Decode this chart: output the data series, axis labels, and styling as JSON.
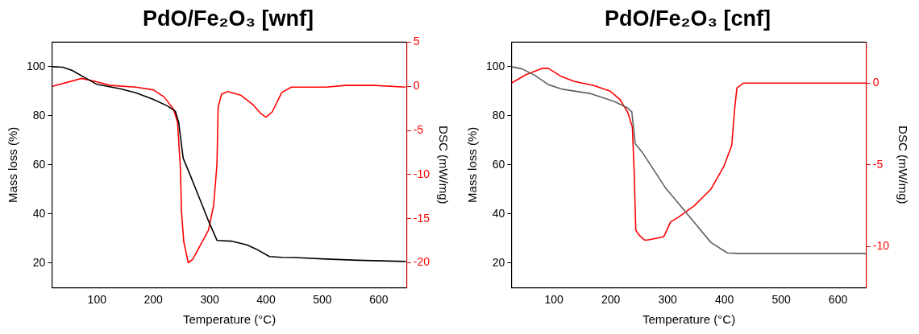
{
  "chart_data": [
    {
      "type": "line",
      "title": "PdO/Fe₂O₃ [wnf]",
      "xlabel": "Temperature (°C)",
      "ylabel": "Mass loss (%)",
      "y2label": "DSC (mW/mg)",
      "xlim": [
        20,
        650
      ],
      "xticks": [
        100,
        200,
        300,
        400,
        500,
        600
      ],
      "ylim": [
        10,
        110
      ],
      "yticks": [
        20,
        40,
        60,
        80,
        100
      ],
      "y2lim": [
        -22.8,
        5
      ],
      "y2ticks": [
        -20,
        -15,
        -10,
        -5,
        0,
        5
      ],
      "series": [
        {
          "color": "#000000",
          "x": [
            21,
            39,
            56,
            79,
            100,
            141,
            169,
            200,
            225,
            239,
            245,
            253,
            264,
            281,
            298,
            313,
            338,
            366,
            383,
            406,
            428,
            451,
            507,
            563,
            648
          ],
          "values": [
            100,
            99.8,
            98.5,
            95.5,
            92.8,
            91,
            89.4,
            86.7,
            84,
            81.9,
            77.3,
            62.7,
            56.6,
            46.9,
            37.1,
            29.2,
            28.9,
            27.4,
            25.6,
            22.6,
            22.3,
            22.2,
            21.6,
            21.1,
            20.6
          ]
        },
        {
          "color": "#ff0000",
          "axis": "y2",
          "x": [
            21,
            73,
            100,
            124,
            169,
            200,
            219,
            236,
            243,
            248,
            250,
            254,
            262,
            270,
            281,
            298,
            307,
            313,
            315,
            321,
            332,
            355,
            377,
            391,
            400,
            411,
            428,
            445,
            479,
            507,
            541,
            592,
            648
          ],
          "values": [
            0,
            0.9,
            0.5,
            0.1,
            -0.1,
            -0.4,
            -1.2,
            -2.6,
            -4.1,
            -9.2,
            -14.2,
            -17.6,
            -20,
            -19.6,
            -18.3,
            -16.3,
            -13.5,
            -8.8,
            -2.4,
            -0.9,
            -0.6,
            -1.0,
            -2.1,
            -3.1,
            -3.5,
            -2.9,
            -0.7,
            -0.1,
            -0.1,
            -0.1,
            0.1,
            0.1,
            -0.1
          ]
        }
      ]
    },
    {
      "type": "line",
      "title": "PdO/Fe₂O₃ [cnf]",
      "xlabel": "Temperature (°C)",
      "ylabel": "Mass loss (%)",
      "y2label": "DSC (mW/mg)",
      "xlim": [
        25,
        650
      ],
      "xticks": [
        100,
        200,
        300,
        400,
        500,
        600
      ],
      "ylim": [
        10,
        110
      ],
      "yticks": [
        20,
        40,
        60,
        80,
        100
      ],
      "y2lim": [
        -12.5,
        2.5
      ],
      "y2ticks": [
        -10,
        -5,
        0
      ],
      "series": [
        {
          "color": "#606060",
          "x": [
            25,
            44,
            67,
            90,
            113,
            165,
            205,
            228,
            237,
            243,
            256,
            296,
            336,
            376,
            405,
            422,
            480,
            650
          ],
          "values": [
            100,
            99.1,
            96.4,
            92.7,
            90.9,
            89,
            85.9,
            83.4,
            81.6,
            68.6,
            64.9,
            50.7,
            39.6,
            28.4,
            24.1,
            23.9,
            23.9,
            23.9
          ]
        },
        {
          "color": "#ff0000",
          "axis": "y2",
          "x": [
            25,
            50,
            79,
            90,
            113,
            136,
            170,
            199,
            216,
            230,
            238,
            241,
            244,
            250,
            259,
            265,
            293,
            296,
            305,
            319,
            347,
            376,
            399,
            413,
            418,
            422,
            434,
            480,
            650
          ],
          "values": [
            0,
            0.5,
            0.9,
            0.9,
            0.4,
            0.1,
            -0.15,
            -0.5,
            -1,
            -1.8,
            -2.7,
            -5.3,
            -9,
            -9.3,
            -9.6,
            -9.6,
            -9.4,
            -9.2,
            -8.5,
            -8.2,
            -7.5,
            -6.5,
            -5.1,
            -3.8,
            -1.6,
            -0.3,
            0,
            0,
            0
          ]
        }
      ]
    }
  ]
}
